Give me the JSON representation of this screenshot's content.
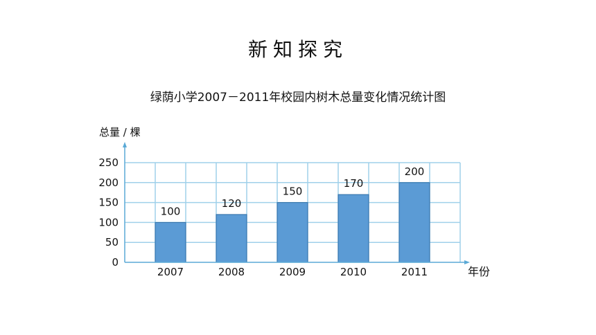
{
  "page": {
    "title": "新知探究"
  },
  "chart_data": {
    "type": "bar",
    "title": "绿荫小学2007－2011年校园内树木总量变化情况统计图",
    "ylabel": "总量 / 棵",
    "xlabel": "年份",
    "categories": [
      "2007",
      "2008",
      "2009",
      "2010",
      "2011"
    ],
    "values": [
      100,
      120,
      150,
      170,
      200
    ],
    "data_labels": [
      "100",
      "120",
      "150",
      "170",
      "200"
    ],
    "y_ticks": [
      0,
      50,
      100,
      150,
      200,
      250
    ],
    "ylim": [
      0,
      250
    ],
    "grid": true,
    "colors": {
      "bar_fill": "#5b9bd5",
      "bar_stroke": "#2f6ea6",
      "grid": "#9fd0ea",
      "axis": "#5aa9d6"
    }
  }
}
